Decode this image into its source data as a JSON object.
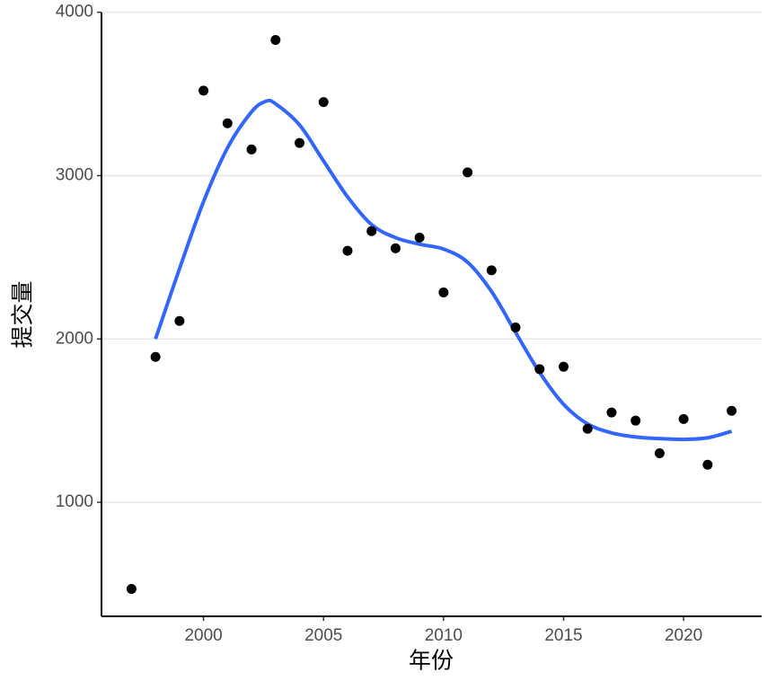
{
  "chart_data": {
    "type": "scatter",
    "x_label": "年份",
    "y_label": "提交量",
    "x": [
      1997,
      1998,
      1999,
      2000,
      2001,
      2002,
      2003,
      2004,
      2005,
      2006,
      2007,
      2008,
      2009,
      2010,
      2011,
      2012,
      2013,
      2014,
      2015,
      2016,
      2017,
      2018,
      2019,
      2020,
      2021,
      2022
    ],
    "values": [
      470,
      1890,
      2110,
      3520,
      3320,
      3160,
      3830,
      3200,
      3450,
      2540,
      2660,
      2555,
      2620,
      2285,
      3020,
      2420,
      2070,
      1815,
      1830,
      1450,
      1550,
      1500,
      1300,
      1510,
      1230,
      1560
    ],
    "color": "#000000",
    "smooth": {
      "x": [
        1998,
        1999,
        2000,
        2001,
        2002,
        2002.6,
        2003,
        2004,
        2005,
        2006,
        2007,
        2008,
        2009,
        2010,
        2011,
        2012,
        2013,
        2014,
        2015,
        2016,
        2017,
        2018,
        2019,
        2020,
        2021,
        2022
      ],
      "values": [
        2000,
        2430,
        2840,
        3170,
        3390,
        3455,
        3440,
        3310,
        3090,
        2870,
        2700,
        2620,
        2580,
        2550,
        2470,
        2290,
        2040,
        1795,
        1600,
        1480,
        1425,
        1400,
        1390,
        1385,
        1395,
        1435
      ],
      "color": "#3366ff"
    },
    "xlim": [
      1995.75,
      2023.25
    ],
    "ylim": [
      302,
      3998
    ],
    "xticks": [
      2000,
      2005,
      2010,
      2015,
      2020
    ],
    "yticks": [
      1000,
      2000,
      3000,
      4000
    ],
    "grid": "y"
  }
}
